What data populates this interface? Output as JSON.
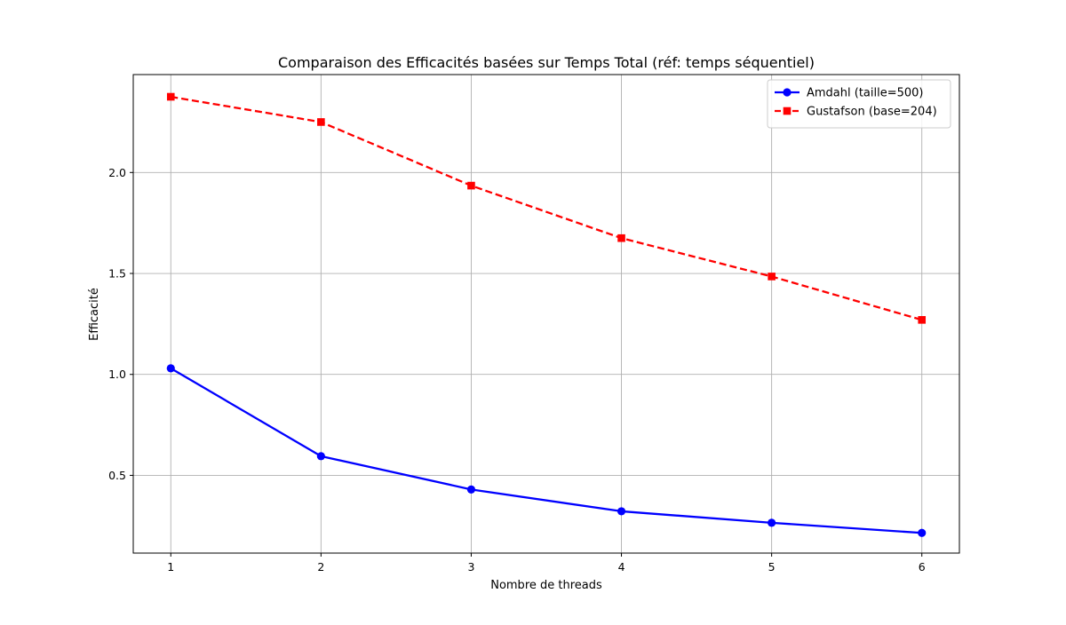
{
  "chart_data": {
    "type": "line",
    "title": "Comparaison des Efficacités basées sur Temps Total (réf: temps séquentiel)",
    "xlabel": "Nombre de threads",
    "ylabel": "Efficacité",
    "x": [
      1,
      2,
      3,
      4,
      5,
      6
    ],
    "xlim": [
      0.75,
      6.25
    ],
    "ylim": [
      0.115,
      2.485
    ],
    "xticks": [
      1,
      2,
      3,
      4,
      5,
      6
    ],
    "yticks": [
      0.5,
      1.0,
      1.5,
      2.0
    ],
    "xtick_labels": [
      "1",
      "2",
      "3",
      "4",
      "5",
      "6"
    ],
    "ytick_labels": [
      "0.5",
      "1.0",
      "1.5",
      "2.0"
    ],
    "grid": true,
    "legend_position": "top-right",
    "series": [
      {
        "name": "Amdahl (taille=500)",
        "values": [
          1.03,
          0.595,
          0.43,
          0.322,
          0.265,
          0.215
        ],
        "color": "#0000ff",
        "linestyle": "solid",
        "marker": "circle"
      },
      {
        "name": "Gustafson (base=204)",
        "values": [
          2.375,
          2.25,
          1.935,
          1.675,
          1.485,
          1.27
        ],
        "color": "#ff0000",
        "linestyle": "dashed",
        "marker": "square"
      }
    ]
  }
}
